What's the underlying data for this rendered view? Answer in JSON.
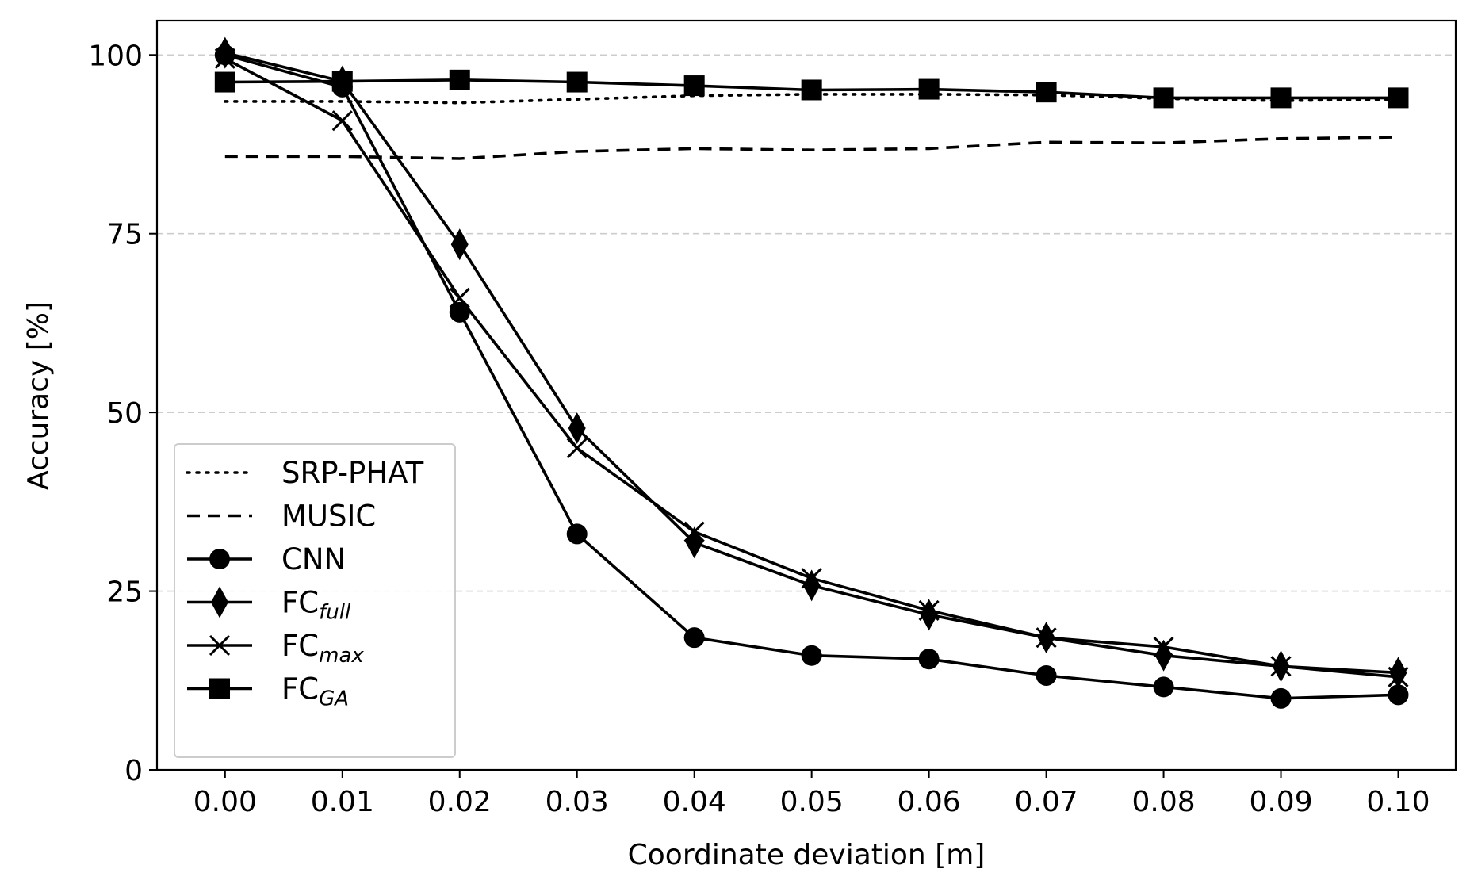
{
  "chart_data": {
    "type": "line",
    "xlabel": "Coordinate deviation [m]",
    "ylabel": "Accuracy [%]",
    "x": [
      0.0,
      0.01,
      0.02,
      0.03,
      0.04,
      0.05,
      0.06,
      0.07,
      0.08,
      0.09,
      0.1
    ],
    "x_tick_labels": [
      "0.00",
      "0.01",
      "0.02",
      "0.03",
      "0.04",
      "0.05",
      "0.06",
      "0.07",
      "0.08",
      "0.09",
      "0.10"
    ],
    "y_ticks": [
      0,
      25,
      50,
      75,
      100
    ],
    "y_tick_labels": [
      "0",
      "25",
      "50",
      "75",
      "100"
    ],
    "xlim": [
      -0.0058,
      0.1049
    ],
    "ylim": [
      0,
      104.8
    ],
    "grid": "y-dashed",
    "legend_position": "lower-left",
    "series": [
      {
        "name": "SRP-PHAT",
        "base": "SRP-PHAT",
        "sub": "",
        "line": "dotted",
        "marker": "none",
        "values": [
          93.5,
          93.5,
          93.3,
          93.8,
          94.3,
          94.5,
          94.5,
          94.4,
          93.9,
          93.6,
          93.8
        ]
      },
      {
        "name": "MUSIC",
        "base": "MUSIC",
        "sub": "",
        "line": "dashed",
        "marker": "none",
        "values": [
          85.8,
          85.8,
          85.5,
          86.5,
          86.9,
          86.7,
          86.9,
          87.8,
          87.7,
          88.3,
          88.5
        ]
      },
      {
        "name": "CNN",
        "base": "CNN",
        "sub": "",
        "line": "solid",
        "marker": "circle",
        "values": [
          100.0,
          95.5,
          64.0,
          33.0,
          18.5,
          16.0,
          15.5,
          13.2,
          11.6,
          10.0,
          10.5
        ]
      },
      {
        "name": "FCfull",
        "base": "FC",
        "sub": "full",
        "line": "solid",
        "marker": "diamond",
        "values": [
          100.3,
          96.3,
          73.5,
          47.8,
          31.8,
          25.8,
          21.7,
          18.5,
          16.0,
          14.5,
          13.6
        ]
      },
      {
        "name": "FCmax",
        "base": "FC",
        "sub": "max",
        "line": "solid",
        "marker": "x",
        "values": [
          99.5,
          90.8,
          66.0,
          45.0,
          33.3,
          26.8,
          22.3,
          18.5,
          17.2,
          14.5,
          13.0
        ]
      },
      {
        "name": "FCGA",
        "base": "FC",
        "sub": "GA",
        "line": "solid",
        "marker": "square",
        "values": [
          96.2,
          96.3,
          96.5,
          96.2,
          95.7,
          95.1,
          95.2,
          94.8,
          94.0,
          94.0,
          94.0
        ]
      }
    ]
  },
  "colors": {
    "line": "#000000",
    "grid": "#cccccc",
    "legend_border": "#cccccc",
    "background": "#ffffff"
  }
}
